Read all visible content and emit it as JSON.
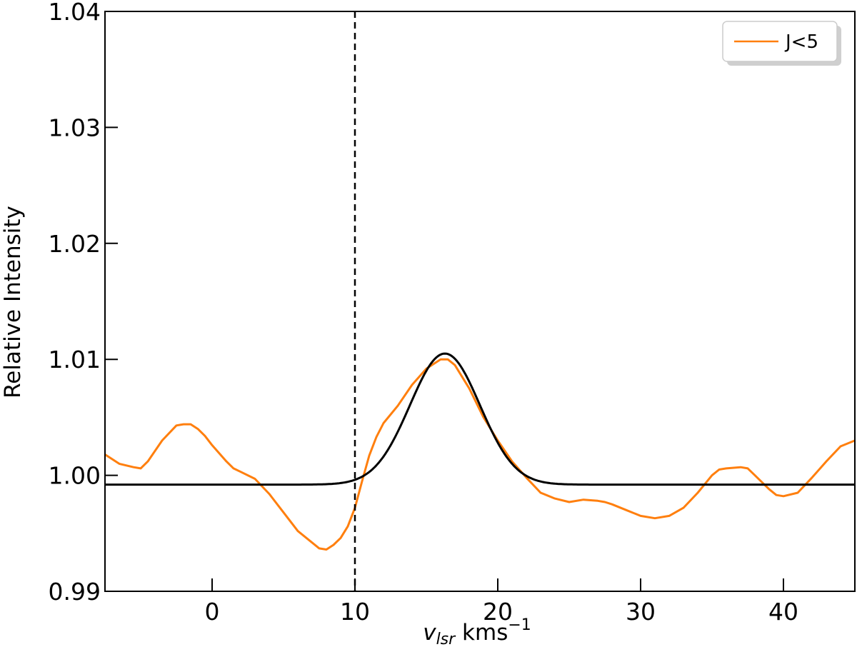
{
  "chart_data": {
    "type": "line",
    "xlabel_main": "v",
    "xlabel_sub": "lsr",
    "xlabel_unit": " kms",
    "xlabel_sup": "−1",
    "ylabel": "Relative Intensity",
    "xlim": [
      -7.5,
      45
    ],
    "ylim": [
      0.99,
      1.04
    ],
    "xticks": [
      0,
      10,
      20,
      30,
      40
    ],
    "xtick_labels": [
      "0",
      "10",
      "20",
      "30",
      "40"
    ],
    "yticks": [
      0.99,
      1.0,
      1.01,
      1.02,
      1.03,
      1.04
    ],
    "ytick_labels": [
      "0.99",
      "1.00",
      "1.01",
      "1.02",
      "1.03",
      "1.04"
    ],
    "grid": false,
    "legend_position": "top-right",
    "vline": {
      "x": 10,
      "style": "dashed",
      "color": "#000000"
    },
    "series": [
      {
        "name": "J<5",
        "color": "#ff7f0e",
        "x": [
          -7.5,
          -6.5,
          -5.5,
          -5.0,
          -4.5,
          -3.5,
          -2.5,
          -2.0,
          -1.5,
          -1.0,
          -0.5,
          0.0,
          1.0,
          1.5,
          2.0,
          3.0,
          4.0,
          5.0,
          6.0,
          7.0,
          7.5,
          8.0,
          8.5,
          9.0,
          9.5,
          10.0,
          10.5,
          11.0,
          11.5,
          12.0,
          13.0,
          14.0,
          15.0,
          16.0,
          16.5,
          17.0,
          18.0,
          19.0,
          20.0,
          21.0,
          22.0,
          23.0,
          24.0,
          25.0,
          26.0,
          27.0,
          27.5,
          28.0,
          29.0,
          30.0,
          31.0,
          32.0,
          33.0,
          34.0,
          35.0,
          35.5,
          36.0,
          37.0,
          37.5,
          38.0,
          39.0,
          39.5,
          40.0,
          41.0,
          42.0,
          43.0,
          44.0,
          45.0
        ],
        "y": [
          1.0018,
          1.001,
          1.0007,
          1.0006,
          1.0012,
          1.003,
          1.0043,
          1.0044,
          1.0044,
          1.004,
          1.0034,
          1.0026,
          1.0012,
          1.0006,
          1.0003,
          0.9997,
          0.9984,
          0.9968,
          0.9952,
          0.9942,
          0.9937,
          0.9936,
          0.994,
          0.9946,
          0.9956,
          0.9972,
          0.9995,
          1.0017,
          1.0033,
          1.0045,
          1.006,
          1.0078,
          1.0092,
          1.01,
          1.01,
          1.0095,
          1.0075,
          1.005,
          1.003,
          1.0012,
          0.9998,
          0.9985,
          0.998,
          0.9977,
          0.9979,
          0.9978,
          0.9977,
          0.9975,
          0.997,
          0.9965,
          0.9963,
          0.9965,
          0.9972,
          0.9985,
          1.0,
          1.0005,
          1.0006,
          1.0007,
          1.0006,
          1.0,
          0.9988,
          0.9983,
          0.9982,
          0.9985,
          0.9998,
          1.0012,
          1.0025,
          1.003
        ]
      },
      {
        "name": "",
        "color": "#000000",
        "model": "gaussian",
        "baseline": 0.9992,
        "amplitude": 0.0113,
        "center": 16.3,
        "sigma": 2.45
      }
    ]
  }
}
